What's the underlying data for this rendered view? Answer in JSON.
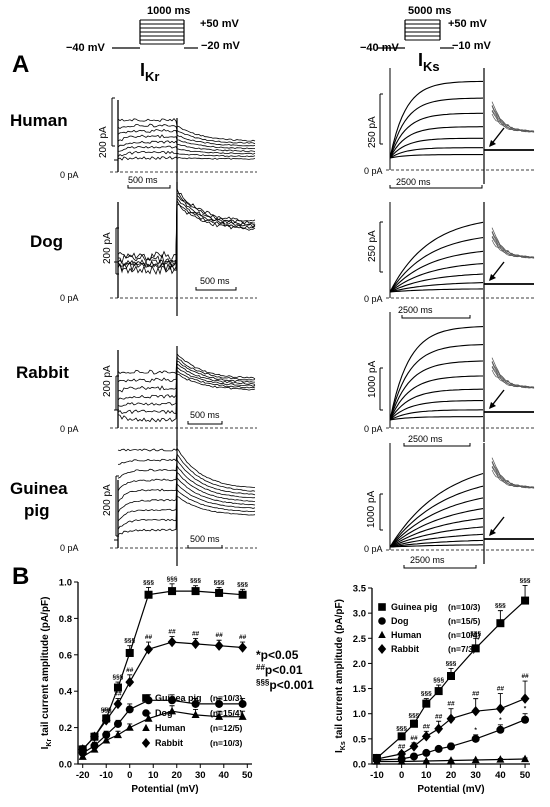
{
  "panel_labels": {
    "a": "A",
    "b": "B"
  },
  "protocol_ikr": {
    "duration": "1000 ms",
    "holding": "−40 mV",
    "top": "+50 mV",
    "bottom": "−20 mV",
    "current_main": "I",
    "current_sub": "Kr"
  },
  "protocol_iks": {
    "duration": "5000 ms",
    "holding": "−40 mV",
    "top": "+50 mV",
    "bottom": "−10 mV",
    "current_main": "I",
    "current_sub": "Ks"
  },
  "rows": [
    {
      "species": "Human",
      "ikr_scale": "200 pA",
      "ikr_time": "500 ms",
      "iks_scale": "250 pA",
      "iks_time": "2500 ms",
      "zero": "0 pA"
    },
    {
      "species": "Dog",
      "ikr_scale": "200 pA",
      "ikr_time": "500 ms",
      "iks_scale": "250 pA",
      "iks_time": "2500 ms",
      "zero": "0 pA"
    },
    {
      "species": "Rabbit",
      "ikr_scale": "200 pA",
      "ikr_time": "500 ms",
      "iks_scale": "1000 pA",
      "iks_time": "2500 ms",
      "zero": "0 pA"
    },
    {
      "species": "Guinea",
      "species2": "pig",
      "ikr_scale": "200 pA",
      "ikr_time": "500 ms",
      "iks_scale": "1000 pA",
      "iks_time": "2500 ms",
      "zero": "0 pA"
    }
  ],
  "significance": {
    "p1": "*p<0.05",
    "p2_mark": "##",
    "p2": "p<0.01",
    "p3_mark": "§§§",
    "p3": "p<0.001"
  },
  "chart_data": [
    {
      "type": "line",
      "ylabel_main": "I",
      "ylabel_sub": "Kr",
      "ylabel_rest": " tail current amplitude (pA/pF)",
      "xlabel": "Potential (mV)",
      "x": [
        -20,
        -10,
        0,
        10,
        20,
        30,
        40,
        50
      ],
      "x_ticks": [
        "-20",
        "-10",
        "0",
        "10",
        "20",
        "30",
        "40",
        "50"
      ],
      "xlim": [
        -22,
        52
      ],
      "ylim": [
        0,
        1.0
      ],
      "y_ticks": [
        "0.0",
        "0.2",
        "0.4",
        "0.6",
        "0.8",
        "1.0"
      ],
      "series": [
        {
          "name": "Guinea pig",
          "n": "(n=10/3)",
          "marker": "square",
          "x": [
            -20,
            -15,
            -10,
            -5,
            0,
            8,
            18,
            28,
            38,
            48
          ],
          "values": [
            0.08,
            0.15,
            0.25,
            0.42,
            0.61,
            0.93,
            0.95,
            0.95,
            0.94,
            0.93
          ],
          "err": [
            0.02,
            0.02,
            0.02,
            0.03,
            0.04,
            0.04,
            0.04,
            0.03,
            0.03,
            0.03
          ],
          "marks": [
            "",
            "",
            "§§§",
            "§§§",
            "§§§",
            "§§§",
            "§§§",
            "§§§",
            "§§§",
            "§§§"
          ]
        },
        {
          "name": "Dog",
          "n": "(n=15/4)",
          "marker": "circle",
          "x": [
            -20,
            -15,
            -10,
            -5,
            0,
            8,
            18,
            28,
            38,
            48
          ],
          "values": [
            0.06,
            0.1,
            0.16,
            0.22,
            0.3,
            0.35,
            0.35,
            0.33,
            0.33,
            0.33
          ],
          "err": [
            0.02,
            0.02,
            0.02,
            0.02,
            0.03,
            0.03,
            0.03,
            0.03,
            0.03,
            0.03
          ],
          "marks": [
            "",
            "",
            "",
            "",
            "",
            "",
            "",
            "",
            "",
            ""
          ]
        },
        {
          "name": "Human",
          "n": "(n=12/5)",
          "marker": "triangle",
          "x": [
            -20,
            -15,
            -10,
            -5,
            0,
            8,
            18,
            28,
            38,
            48
          ],
          "values": [
            0.04,
            0.08,
            0.13,
            0.16,
            0.2,
            0.25,
            0.29,
            0.27,
            0.26,
            0.26
          ],
          "err": [
            0.01,
            0.02,
            0.02,
            0.02,
            0.02,
            0.03,
            0.03,
            0.03,
            0.03,
            0.03
          ],
          "marks": [
            "",
            "",
            "",
            "",
            "",
            "",
            "",
            "",
            "",
            ""
          ]
        },
        {
          "name": "Rabbit",
          "n": "(n=10/3)",
          "marker": "diamond",
          "x": [
            -20,
            -15,
            -10,
            -5,
            0,
            8,
            18,
            28,
            38,
            48
          ],
          "values": [
            0.08,
            0.15,
            0.24,
            0.33,
            0.45,
            0.63,
            0.67,
            0.66,
            0.65,
            0.64
          ],
          "err": [
            0.02,
            0.02,
            0.03,
            0.03,
            0.04,
            0.04,
            0.03,
            0.03,
            0.03,
            0.03
          ],
          "marks": [
            "",
            "",
            "##",
            "##",
            "##",
            "##",
            "##",
            "##",
            "##",
            "##"
          ]
        }
      ]
    },
    {
      "type": "line",
      "ylabel_main": "I",
      "ylabel_sub": "Ks",
      "ylabel_rest": " tail current amplitude (pA/pF)",
      "xlabel": "Potential (mV)",
      "x": [
        -10,
        0,
        10,
        20,
        30,
        40,
        50
      ],
      "x_ticks": [
        "-10",
        "0",
        "10",
        "20",
        "30",
        "40",
        "50"
      ],
      "xlim": [
        -12,
        52
      ],
      "ylim": [
        0,
        3.5
      ],
      "y_ticks": [
        "0.0",
        "0.5",
        "1.0",
        "1.5",
        "2.0",
        "2.5",
        "3.0",
        "3.5"
      ],
      "series": [
        {
          "name": "Guinea pig",
          "n": "(n=10/3)",
          "marker": "square",
          "x": [
            -10,
            0,
            5,
            10,
            15,
            20,
            30,
            40,
            50
          ],
          "values": [
            0.12,
            0.55,
            0.8,
            1.2,
            1.45,
            1.75,
            2.3,
            2.8,
            3.25
          ],
          "err": [
            0.04,
            0.06,
            0.07,
            0.1,
            0.12,
            0.15,
            0.2,
            0.25,
            0.3
          ],
          "marks": [
            "",
            "§§§",
            "§§§",
            "§§§",
            "§§§",
            "§§§",
            "§§§",
            "§§§",
            "§§§"
          ]
        },
        {
          "name": "Dog",
          "n": "(n=15/5)",
          "marker": "circle",
          "x": [
            -10,
            0,
            5,
            10,
            15,
            20,
            30,
            40,
            50
          ],
          "values": [
            0.08,
            0.1,
            0.15,
            0.22,
            0.3,
            0.35,
            0.5,
            0.68,
            0.88
          ],
          "err": [
            0.02,
            0.03,
            0.03,
            0.04,
            0.05,
            0.06,
            0.08,
            0.1,
            0.12
          ],
          "marks": [
            "",
            "",
            "",
            "",
            "",
            "",
            "*",
            "*",
            "*"
          ]
        },
        {
          "name": "Human",
          "n": "(n=10/4)",
          "marker": "triangle",
          "x": [
            -10,
            0,
            10,
            20,
            30,
            40,
            50
          ],
          "values": [
            0.05,
            0.05,
            0.06,
            0.07,
            0.08,
            0.09,
            0.1
          ],
          "err": [
            0.01,
            0.01,
            0.01,
            0.01,
            0.01,
            0.02,
            0.02
          ],
          "marks": [
            "",
            "",
            "",
            "",
            "",
            "",
            ""
          ]
        },
        {
          "name": "Rabbit",
          "n": "(n=7/3)",
          "marker": "diamond",
          "x": [
            -10,
            0,
            5,
            10,
            15,
            20,
            30,
            40,
            50
          ],
          "values": [
            0.1,
            0.2,
            0.35,
            0.55,
            0.7,
            0.9,
            1.05,
            1.1,
            1.3
          ],
          "err": [
            0.03,
            0.05,
            0.07,
            0.1,
            0.15,
            0.2,
            0.25,
            0.3,
            0.35
          ],
          "marks": [
            "",
            "##",
            "##",
            "##",
            "##",
            "##",
            "##",
            "##",
            "##"
          ]
        }
      ]
    }
  ]
}
